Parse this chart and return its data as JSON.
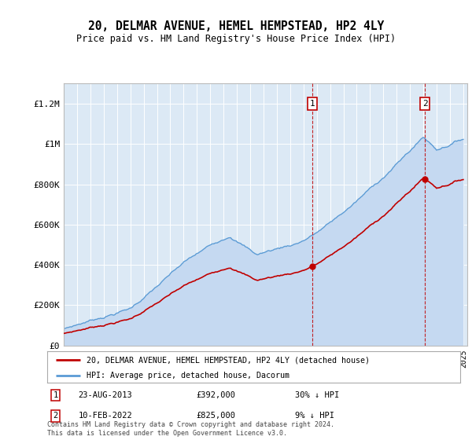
{
  "title": "20, DELMAR AVENUE, HEMEL HEMPSTEAD, HP2 4LY",
  "subtitle": "Price paid vs. HM Land Registry's House Price Index (HPI)",
  "background_color": "#ffffff",
  "plot_bg_color": "#dce9f5",
  "hpi_color": "#5b9bd5",
  "hpi_fill_color": "#c5d9f1",
  "price_color": "#c00000",
  "dashed_line_color": "#c00000",
  "ylim": [
    0,
    1300000
  ],
  "yticks": [
    0,
    200000,
    400000,
    600000,
    800000,
    1000000,
    1200000
  ],
  "ytick_labels": [
    "£0",
    "£200K",
    "£400K",
    "£600K",
    "£800K",
    "£1M",
    "£1.2M"
  ],
  "year_start": 1995,
  "year_end": 2025,
  "sale1_year": 2013.65,
  "sale1_price": 392000,
  "sale2_year": 2022.12,
  "sale2_price": 825000,
  "legend_line1": "20, DELMAR AVENUE, HEMEL HEMPSTEAD, HP2 4LY (detached house)",
  "legend_line2": "HPI: Average price, detached house, Dacorum",
  "annotation1_label": "1",
  "annotation1_date": "23-AUG-2013",
  "annotation1_price": "£392,000",
  "annotation1_hpi": "30% ↓ HPI",
  "annotation2_label": "2",
  "annotation2_date": "10-FEB-2022",
  "annotation2_price": "£825,000",
  "annotation2_hpi": "9% ↓ HPI",
  "footer": "Contains HM Land Registry data © Crown copyright and database right 2024.\nThis data is licensed under the Open Government Licence v3.0."
}
